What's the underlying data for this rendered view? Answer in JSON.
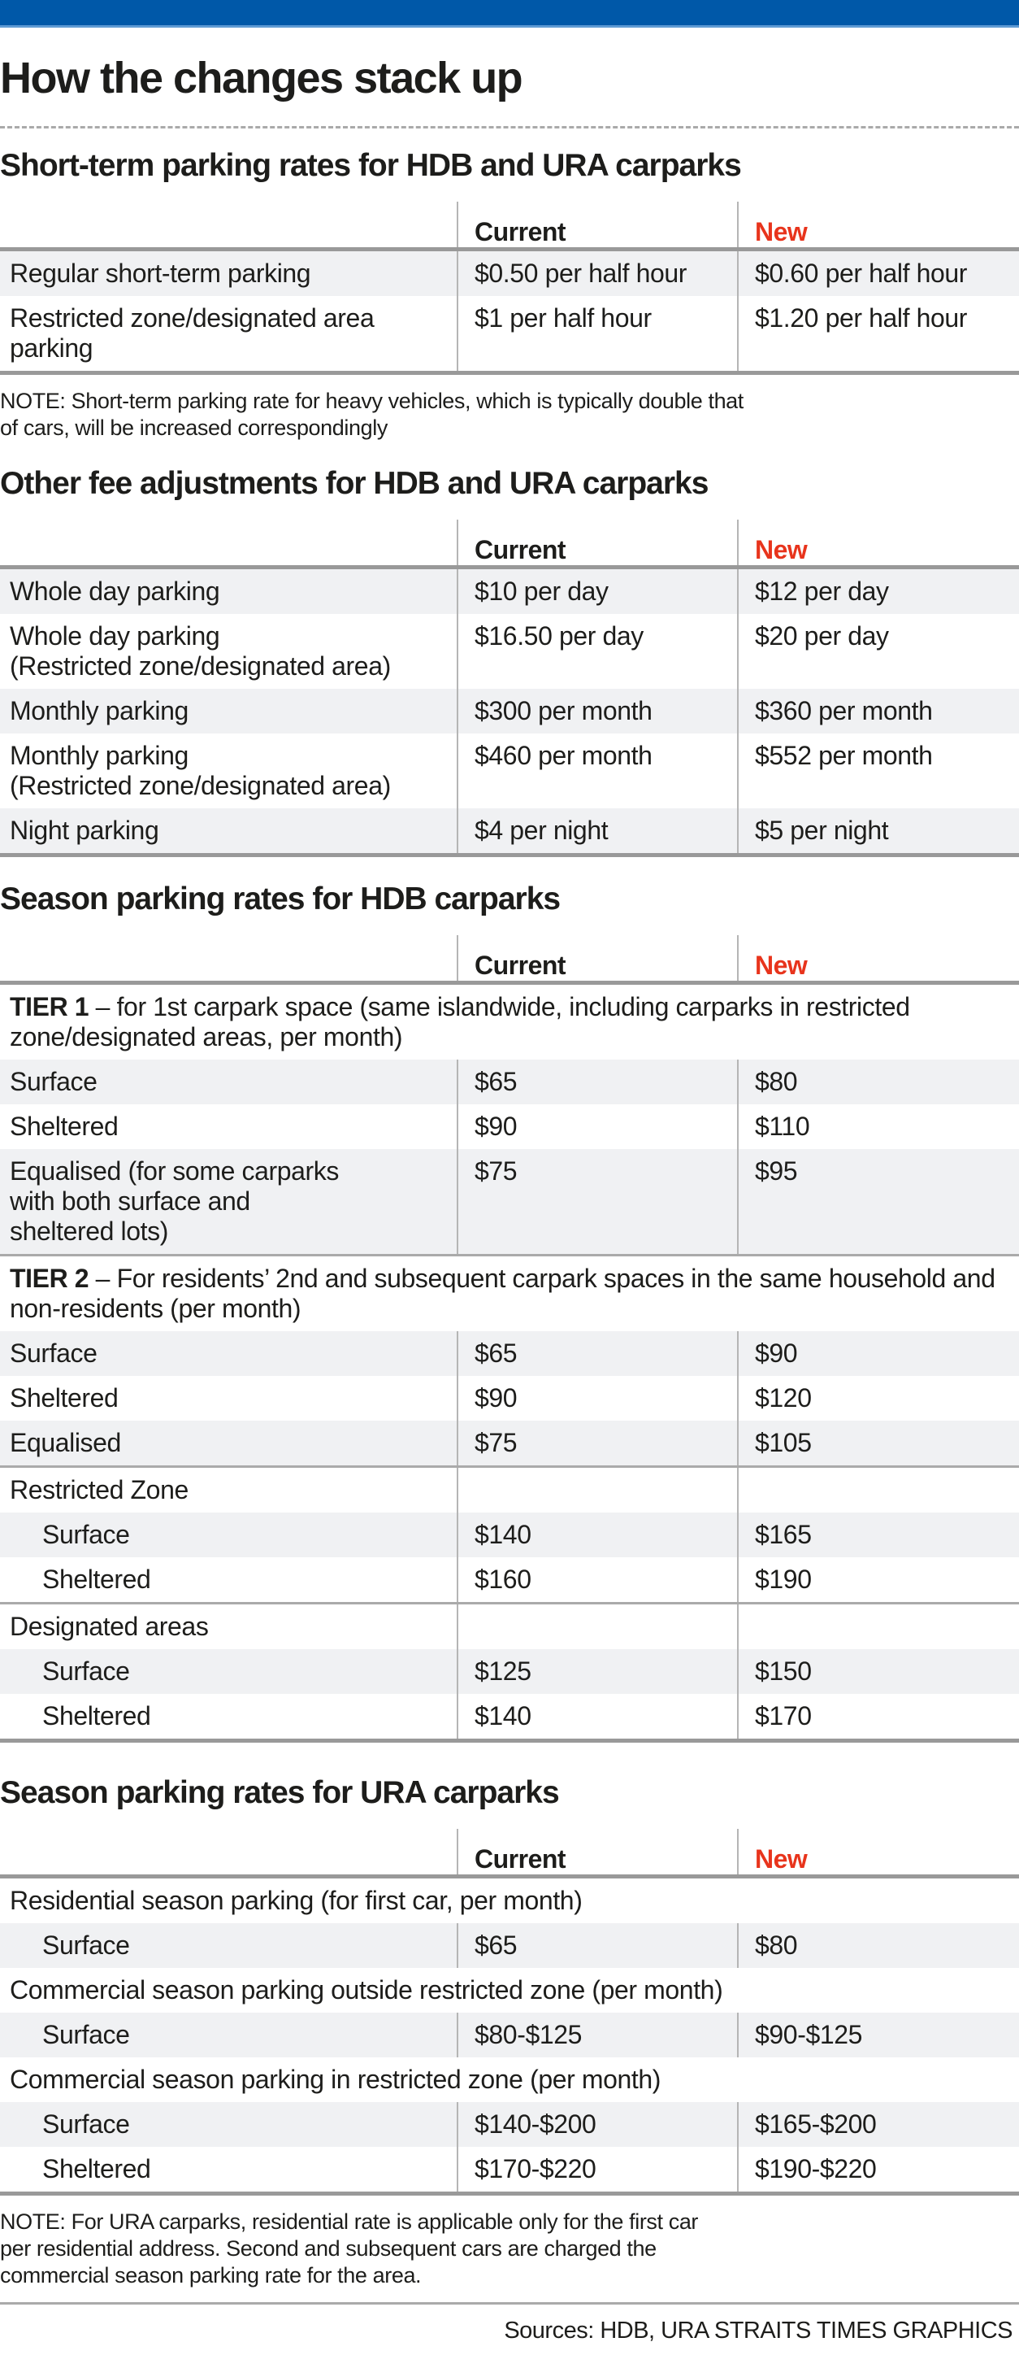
{
  "title": "How the changes stack up",
  "col_current": "Current",
  "col_new": "New",
  "colors": {
    "brand_bar": "#0058a8",
    "new_label": "#e8341c",
    "shade": "#f0f1f3"
  },
  "sections": [
    {
      "title": "Short-term parking rates for HDB and URA carparks",
      "rows": [
        {
          "label": "Regular short-term parking",
          "current": "$0.50 per half hour",
          "new": "$0.60 per half hour"
        },
        {
          "label": "Restricted zone/designated area parking",
          "current": "$1 per half hour",
          "new": "$1.20 per half hour"
        }
      ],
      "note": "NOTE: Short-term parking rate for heavy vehicles, which is typically double that\nof cars, will be increased correspondingly"
    },
    {
      "title": "Other fee adjustments for HDB and URA carparks",
      "rows": [
        {
          "label": "Whole day parking",
          "current": "$10 per day",
          "new": "$12 per day"
        },
        {
          "label": "Whole day parking\n(Restricted zone/designated area)",
          "current": "$16.50 per day",
          "new": "$20 per day"
        },
        {
          "label": "Monthly parking",
          "current": "$300 per month",
          "new": "$360 per month"
        },
        {
          "label": "Monthly parking\n(Restricted zone/designated area)",
          "current": "$460 per month",
          "new": "$552 per month"
        },
        {
          "label": "Night parking",
          "current": "$4 per night",
          "new": "$5 per night"
        }
      ]
    },
    {
      "title": "Season parking rates for HDB carparks",
      "rows": [
        {
          "group": true,
          "bold": "TIER 1",
          "text": " – for 1st carpark space (same islandwide, including carparks in restricted zone/designated areas, per month)"
        },
        {
          "label": "Surface",
          "current": "$65",
          "new": "$80"
        },
        {
          "label": "Sheltered",
          "current": "$90",
          "new": "$110"
        },
        {
          "label": "Equalised (for some carparks\nwith both surface and\nsheltered lots)",
          "current": "$75",
          "new": "$95"
        },
        {
          "group": true,
          "rule": true,
          "bold": "TIER 2",
          "text": " – For residents’ 2nd and subsequent carpark spaces in the same household and non-residents (per month)"
        },
        {
          "label": "Surface",
          "current": "$65",
          "new": "$90"
        },
        {
          "label": "Sheltered",
          "current": "$90",
          "new": "$120"
        },
        {
          "label": "Equalised",
          "current": "$75",
          "new": "$105"
        },
        {
          "group": true,
          "rule": true,
          "divided": true,
          "text": "Restricted Zone"
        },
        {
          "label": "Surface",
          "indent": true,
          "current": "$140",
          "new": "$165"
        },
        {
          "label": "Sheltered",
          "indent": true,
          "current": "$160",
          "new": "$190"
        },
        {
          "group": true,
          "rule": true,
          "divided": true,
          "text": "Designated areas"
        },
        {
          "label": "Surface",
          "indent": true,
          "current": "$125",
          "new": "$150"
        },
        {
          "label": "Sheltered",
          "indent": true,
          "current": "$140",
          "new": "$170"
        }
      ]
    },
    {
      "title": "Season parking rates for URA carparks",
      "rows": [
        {
          "group": true,
          "text": "Residential season parking (for first car, per month)"
        },
        {
          "label": "Surface",
          "indent": true,
          "current": "$65",
          "new": "$80"
        },
        {
          "group": true,
          "text": "Commercial season parking outside restricted zone (per month)"
        },
        {
          "label": "Surface",
          "indent": true,
          "current": "$80-$125",
          "new": "$90-$125"
        },
        {
          "group": true,
          "text": "Commercial season parking in restricted zone (per month)"
        },
        {
          "label": "Surface",
          "indent": true,
          "current": "$140-$200",
          "new": "$165-$200"
        },
        {
          "label": "Sheltered",
          "indent": true,
          "current": "$170-$220",
          "new": "$190-$220"
        }
      ],
      "note": "NOTE: For URA carparks, residential rate is applicable only for the first car\nper residential address. Second and subsequent cars are charged the\ncommercial season parking rate for the area."
    }
  ],
  "footer": {
    "sources": "Sources: HDB, URA   STRAITS TIMES GRAPHICS"
  }
}
